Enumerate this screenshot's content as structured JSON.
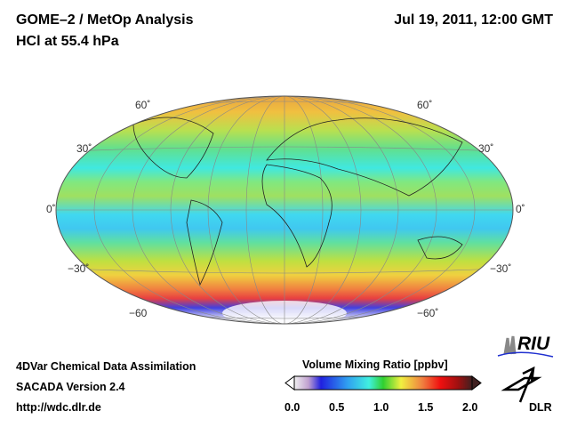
{
  "header": {
    "title": "GOME–2 / MetOp Analysis",
    "subtitle": "HCl at 55.4 hPa",
    "datetime": "Jul 19, 2011, 12:00 GMT"
  },
  "map": {
    "projection": "hammer-aitoff",
    "lat_labels_left": [
      "60˚",
      "30˚",
      "0˚",
      "−30˚",
      "−60"
    ],
    "lat_labels_right": [
      "60˚",
      "30˚",
      "0˚",
      "−30˚",
      "−60˚"
    ]
  },
  "footer": {
    "line1": "4DVar Chemical Data Assimilation",
    "line2": "SACADA Version 2.4",
    "line3": "http://wdc.dlr.de"
  },
  "colorbar": {
    "title": "Volume Mixing Ratio [ppbv]",
    "ticks": [
      "0.0",
      "0.5",
      "1.0",
      "1.5",
      "2.0"
    ],
    "range": [
      0.0,
      2.0
    ]
  },
  "logos": {
    "riu": "RIU",
    "dlr": "DLR"
  }
}
